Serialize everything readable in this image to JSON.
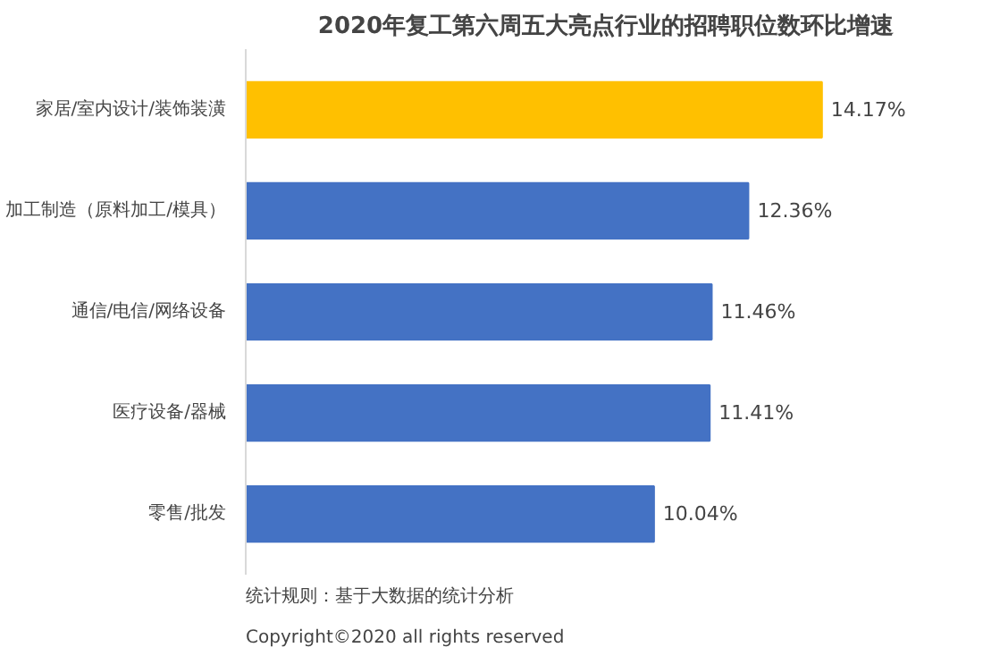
{
  "chart_data": {
    "type": "bar",
    "orientation": "horizontal",
    "title": "2020年复工第六周五大亮点行业的招聘职位数环比增速",
    "categories": [
      "家居/室内设计/装饰装潢",
      "加工制造（原料加工/模具）",
      "通信/电信/网络设备",
      "医疗设备/器械",
      "零售/批发"
    ],
    "values": [
      14.17,
      12.36,
      11.46,
      11.41,
      10.04
    ],
    "colors": [
      "#ffc000",
      "#4472c4",
      "#4472c4",
      "#4472c4",
      "#4472c4"
    ],
    "value_labels": [
      "14.17%",
      "12.36%",
      "11.46%",
      "11.41%",
      "10.04%"
    ],
    "annotations": [
      "统计规则：基于大数据的统计分析",
      "Copyright©2020 all rights reserved"
    ]
  }
}
